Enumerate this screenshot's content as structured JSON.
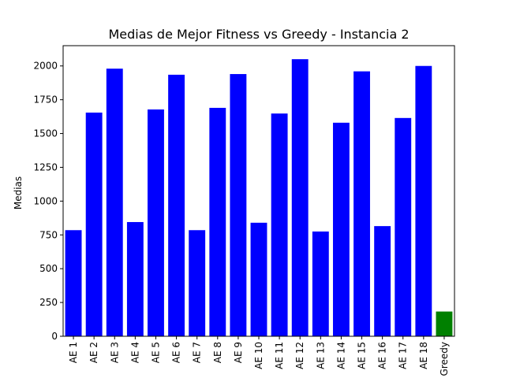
{
  "chart_data": {
    "type": "bar",
    "title": "Medias de Mejor Fitness vs Greedy - Instancia 2",
    "xlabel": "",
    "ylabel": "Medias",
    "categories": [
      "AE 1",
      "AE 2",
      "AE 3",
      "AE 4",
      "AE 5",
      "AE 6",
      "AE 7",
      "AE 8",
      "AE 9",
      "AE 10",
      "AE 11",
      "AE 12",
      "AE 13",
      "AE 14",
      "AE 15",
      "AE 16",
      "AE 17",
      "AE 18",
      "Greedy"
    ],
    "values": [
      785,
      1655,
      1980,
      845,
      1678,
      1935,
      785,
      1690,
      1940,
      840,
      1648,
      2050,
      775,
      1580,
      1960,
      815,
      1615,
      2000,
      183
    ],
    "colors": [
      "#0000ff",
      "#0000ff",
      "#0000ff",
      "#0000ff",
      "#0000ff",
      "#0000ff",
      "#0000ff",
      "#0000ff",
      "#0000ff",
      "#0000ff",
      "#0000ff",
      "#0000ff",
      "#0000ff",
      "#0000ff",
      "#0000ff",
      "#0000ff",
      "#0000ff",
      "#0000ff",
      "#008000"
    ],
    "ylim": [
      0,
      2150
    ],
    "yticks": [
      0,
      250,
      500,
      750,
      1000,
      1250,
      1500,
      1750,
      2000
    ],
    "grid": false,
    "legend": "none"
  }
}
